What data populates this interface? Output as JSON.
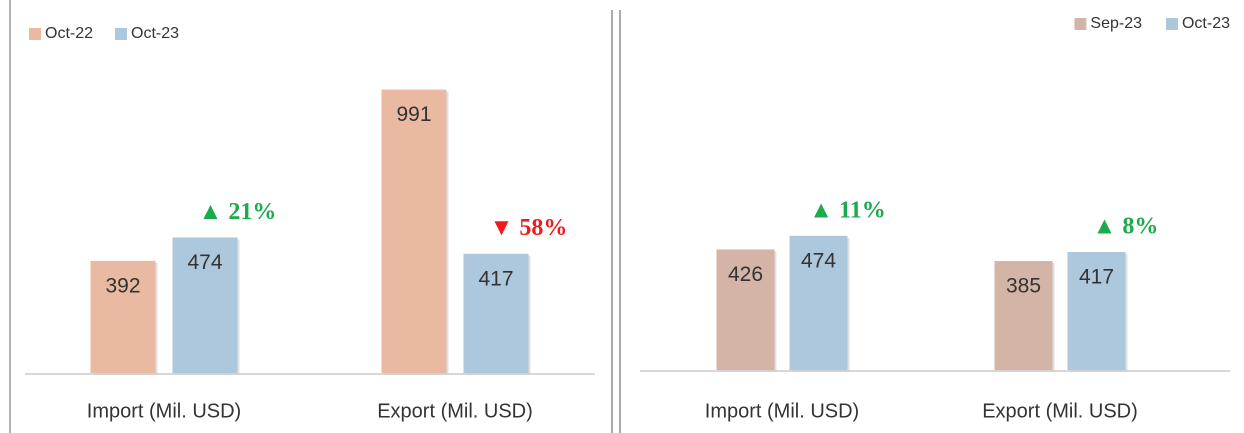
{
  "chart_data": [
    {
      "type": "bar",
      "categories": [
        "Import (Mil. USD)",
        "Export (Mil. USD)"
      ],
      "series": [
        {
          "name": "Oct-22",
          "color": "#e9b9a1",
          "values": [
            392,
            991
          ]
        },
        {
          "name": "Oct-23",
          "color": "#adc7dd",
          "values": [
            474,
            417
          ]
        }
      ],
      "ylim": [
        0,
        1000
      ],
      "legend": "top-left",
      "annotations": [
        {
          "text": "▲ 21%",
          "color": "#1aab4b"
        },
        {
          "text": "▼ 58%",
          "color": "#ee1c1c"
        }
      ]
    },
    {
      "type": "bar",
      "categories": [
        "Import (Mil. USD)",
        "Export (Mil. USD)"
      ],
      "series": [
        {
          "name": "Sep-23",
          "color": "#d4b4a6",
          "values": [
            426,
            385
          ]
        },
        {
          "name": "Oct-23",
          "color": "#adc7dd",
          "values": [
            474,
            417
          ]
        }
      ],
      "ylim": [
        0,
        1000
      ],
      "legend": "top-right",
      "annotations": [
        {
          "text": "▲ 11%",
          "color": "#1aab4b"
        },
        {
          "text": "▲ 8%",
          "color": "#1aab4b"
        }
      ]
    }
  ]
}
